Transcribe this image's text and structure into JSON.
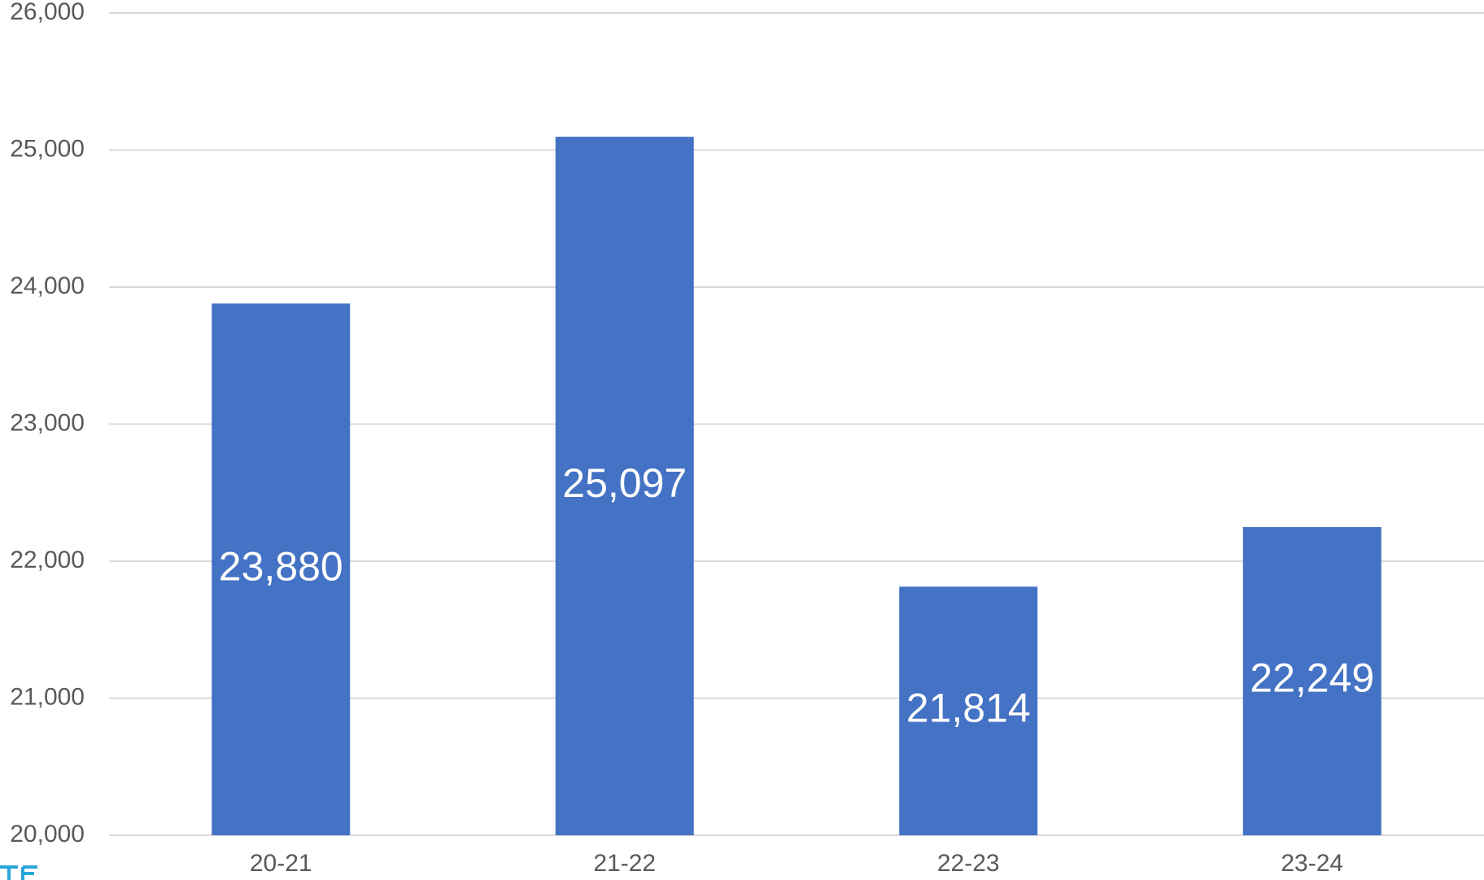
{
  "chart_data": {
    "type": "bar",
    "title": "",
    "xlabel": "",
    "ylabel": "",
    "categories": [
      "20-21",
      "21-22",
      "22-23",
      "23-24"
    ],
    "values": [
      23880,
      25097,
      21814,
      22249
    ],
    "data_labels": [
      "23,880",
      "25,097",
      "21,814",
      "22,249"
    ],
    "ylim": [
      20000,
      26000
    ],
    "y_ticks": [
      20000,
      21000,
      22000,
      23000,
      24000,
      25000,
      26000
    ],
    "y_tick_labels": [
      "20,000",
      "21,000",
      "22,000",
      "23,000",
      "24,000",
      "25,000",
      "26,000"
    ],
    "grid": true,
    "legend": "none",
    "bar_color": "#4472c4",
    "data_label_color": "#ffffff",
    "gridline_color": "#d9d9d9",
    "axis_text_color": "#595959"
  }
}
